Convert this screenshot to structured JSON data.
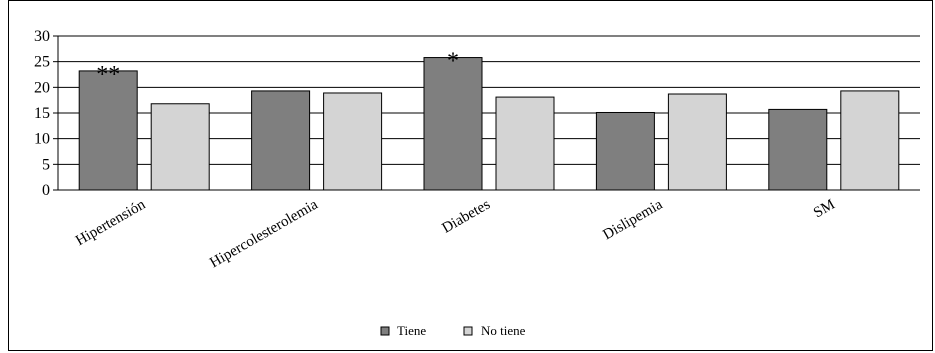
{
  "chart_data": {
    "type": "bar",
    "categories": [
      "Hipertensión",
      "Hipercolesterolemia",
      "Diabetes",
      "Dislipemia",
      "SM"
    ],
    "series": [
      {
        "name": "Tiene",
        "values": [
          23.2,
          19.3,
          25.8,
          15.1,
          15.7
        ]
      },
      {
        "name": "No tiene",
        "values": [
          16.8,
          18.9,
          18.1,
          18.7,
          19.3
        ]
      }
    ],
    "annotations": [
      "**",
      "",
      "*",
      "",
      ""
    ],
    "ylim": [
      0,
      30
    ],
    "yticks": [
      0,
      5,
      10,
      15,
      20,
      25,
      30
    ],
    "grid": true,
    "legend_position": "bottom-center",
    "colors": {
      "Tiene": "#7f7f7f",
      "No tiene": "#d4d4d4"
    }
  }
}
